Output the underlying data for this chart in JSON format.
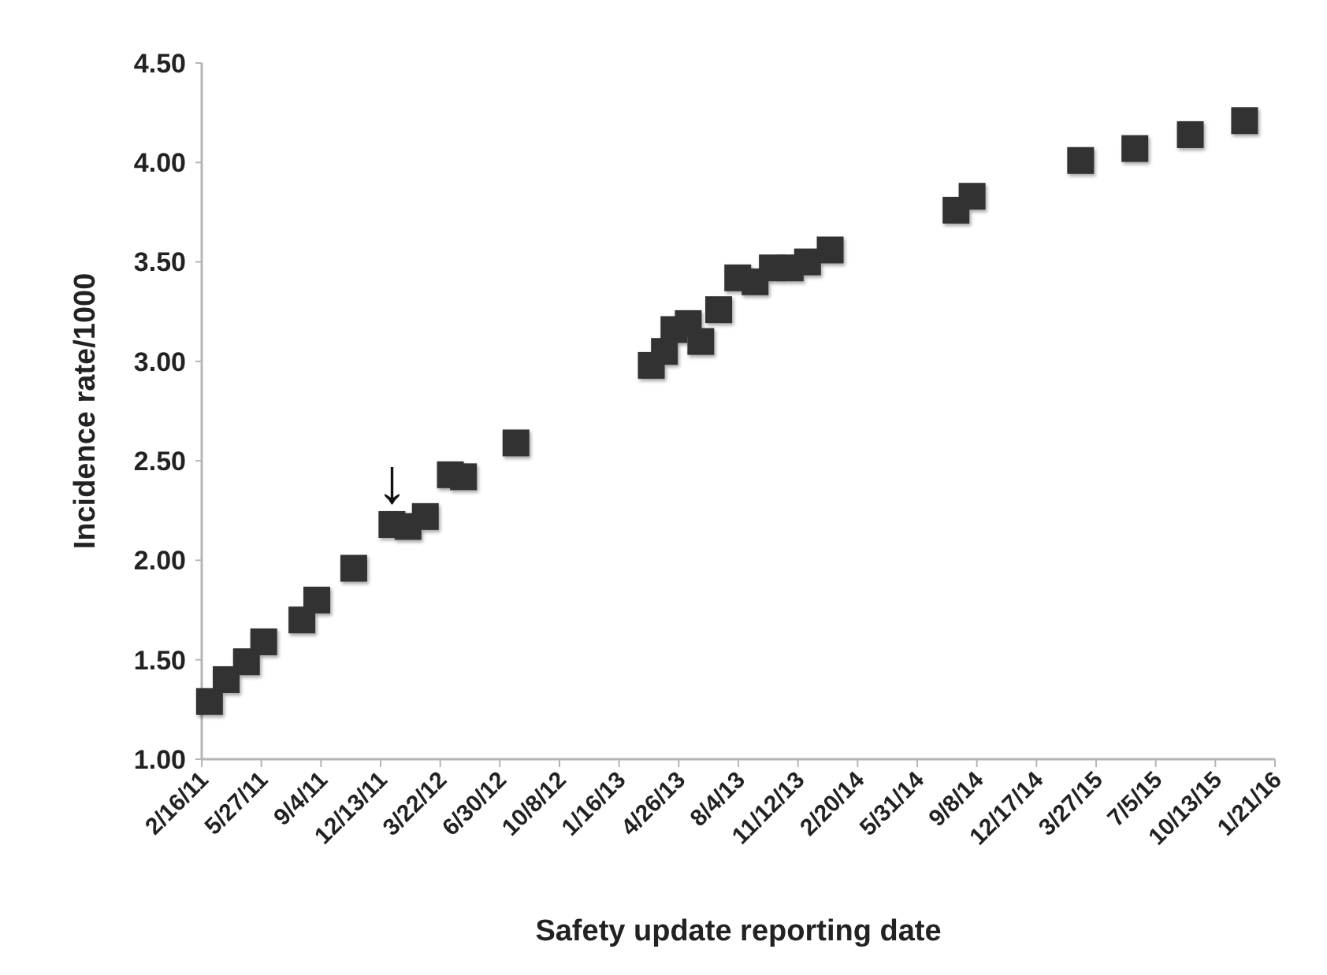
{
  "chart_data": {
    "type": "scatter",
    "xlabel": "Safety update reporting date",
    "ylabel": "Incidence rate/1000",
    "x": [
      "2011-03-01",
      "2011-03-29",
      "2011-05-02",
      "2011-05-31",
      "2011-08-03",
      "2011-08-28",
      "2011-10-29",
      "2012-01-01",
      "2012-01-28",
      "2012-02-26",
      "2012-04-08",
      "2012-04-30",
      "2012-07-27",
      "2013-03-11",
      "2013-04-02",
      "2013-04-18",
      "2013-05-12",
      "2013-06-02",
      "2013-07-02",
      "2013-08-03",
      "2013-09-01",
      "2013-09-30",
      "2013-10-30",
      "2013-11-28",
      "2014-01-05",
      "2014-08-04",
      "2014-08-31",
      "2015-03-01",
      "2015-05-31",
      "2015-09-01",
      "2015-12-01"
    ],
    "series": [
      {
        "color": "#333333",
        "values": [
          1.29,
          1.4,
          1.49,
          1.59,
          1.7,
          1.8,
          1.96,
          2.18,
          2.17,
          2.22,
          2.43,
          2.42,
          2.59,
          2.98,
          3.05,
          3.16,
          3.19,
          3.1,
          3.26,
          3.42,
          3.4,
          3.47,
          3.47,
          3.5,
          3.56,
          3.76,
          3.83,
          4.01,
          4.07,
          4.14,
          4.21
        ]
      }
    ],
    "marker": "square",
    "grid": false,
    "xlim": [
      "2011-02-16",
      "2016-01-21"
    ],
    "xticks": [
      {
        "value": "2011-02-16",
        "label": "2/16/11"
      },
      {
        "value": "2011-05-27",
        "label": "5/27/11"
      },
      {
        "value": "2011-09-04",
        "label": "9/4/11"
      },
      {
        "value": "2011-12-13",
        "label": "12/13/11"
      },
      {
        "value": "2012-03-22",
        "label": "3/22/12"
      },
      {
        "value": "2012-06-30",
        "label": "6/30/12"
      },
      {
        "value": "2012-10-08",
        "label": "10/8/12"
      },
      {
        "value": "2013-01-16",
        "label": "1/16/13"
      },
      {
        "value": "2013-04-26",
        "label": "4/26/13"
      },
      {
        "value": "2013-08-04",
        "label": "8/4/13"
      },
      {
        "value": "2013-11-12",
        "label": "11/12/13"
      },
      {
        "value": "2014-02-20",
        "label": "2/20/14"
      },
      {
        "value": "2014-05-31",
        "label": "5/31/14"
      },
      {
        "value": "2014-09-08",
        "label": "9/8/14"
      },
      {
        "value": "2014-12-17",
        "label": "12/17/14"
      },
      {
        "value": "2015-03-27",
        "label": "3/27/15"
      },
      {
        "value": "2015-07-05",
        "label": "7/5/15"
      },
      {
        "value": "2015-10-13",
        "label": "10/13/15"
      },
      {
        "value": "2016-01-21",
        "label": "1/21/16"
      }
    ],
    "ylim": [
      1,
      4.5
    ],
    "yticks": [
      {
        "value": 1,
        "label": "1.00"
      },
      {
        "value": 1.5,
        "label": "1.50"
      },
      {
        "value": 2,
        "label": "2.00"
      },
      {
        "value": 2.5,
        "label": "2.50"
      },
      {
        "value": 3,
        "label": "3.00"
      },
      {
        "value": 3.5,
        "label": "3.50"
      },
      {
        "value": 4,
        "label": "4.00"
      },
      {
        "value": 4.5,
        "label": "4.50"
      }
    ],
    "annotations": [
      {
        "text": "↓",
        "x": "2012-01-01",
        "y": 2.18
      }
    ]
  }
}
